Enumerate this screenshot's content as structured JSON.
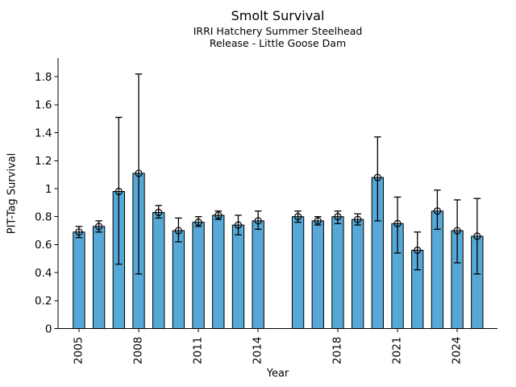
{
  "chart_data": {
    "type": "bar",
    "title": "Smolt Survival",
    "subtitles": [
      "IRRI Hatchery Summer Steelhead",
      "Release - Little Goose Dam"
    ],
    "xlabel": "Year",
    "ylabel": "PIT-Tag Survival",
    "x": [
      2005,
      2006,
      2007,
      2008,
      2009,
      2010,
      2011,
      2012,
      2013,
      2014,
      2016,
      2017,
      2018,
      2019,
      2020,
      2021,
      2022,
      2023,
      2024,
      2025
    ],
    "values": [
      0.69,
      0.73,
      0.98,
      1.11,
      0.83,
      0.7,
      0.76,
      0.81,
      0.74,
      0.77,
      0.8,
      0.77,
      0.8,
      0.78,
      1.08,
      0.75,
      0.56,
      0.84,
      0.7,
      0.66
    ],
    "error_low": [
      0.65,
      0.69,
      0.46,
      0.39,
      0.79,
      0.62,
      0.73,
      0.78,
      0.67,
      0.71,
      0.76,
      0.74,
      0.75,
      0.74,
      0.77,
      0.54,
      0.42,
      0.71,
      0.47,
      0.39
    ],
    "error_high": [
      0.73,
      0.77,
      1.51,
      1.82,
      0.88,
      0.79,
      0.8,
      0.84,
      0.81,
      0.84,
      0.84,
      0.8,
      0.84,
      0.82,
      1.37,
      0.94,
      0.69,
      0.99,
      0.92,
      0.93
    ],
    "missing_years": [
      2015
    ],
    "x_ticks": [
      2005,
      2008,
      2011,
      2014,
      2018,
      2021,
      2024
    ],
    "x_tick_labels": [
      "2005",
      "2008",
      "2011",
      "2014",
      "2018",
      "2021",
      "2024"
    ],
    "y_ticks": [
      0,
      0.2,
      0.4,
      0.6,
      0.8,
      1.0,
      1.2,
      1.4,
      1.6,
      1.8
    ],
    "y_tick_labels": [
      "0",
      "0.2",
      "0.4",
      "0.6",
      "0.8",
      "1",
      "1.2",
      "1.4",
      "1.6",
      "1.8"
    ],
    "xlim": [
      2003.95,
      2026.02
    ],
    "ylim": [
      0,
      1.934
    ],
    "bar_width_years": 0.58,
    "bar_color": "#56a8d6",
    "edge_color": "#000000",
    "marker": "open-circle",
    "grid": false,
    "legend_position": "none"
  }
}
